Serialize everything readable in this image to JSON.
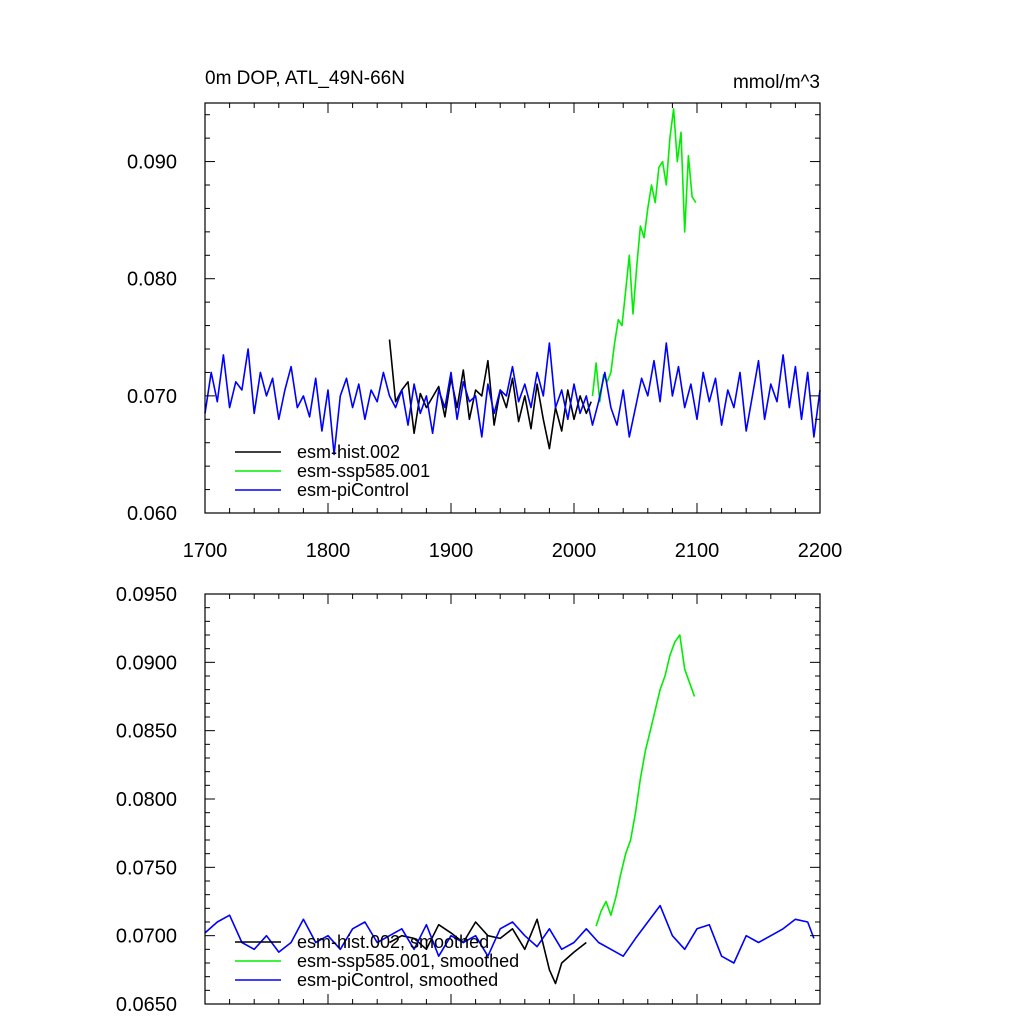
{
  "chart_data": [
    {
      "type": "line",
      "title": "0m DOP, ATL_49N-66N",
      "units": "mmol/m^3",
      "xlabel": "",
      "ylabel": "",
      "xlim": [
        1700,
        2200
      ],
      "ylim": [
        0.06,
        0.095
      ],
      "x_ticks": [
        1700,
        1800,
        1900,
        2000,
        2100,
        2200
      ],
      "x_tick_labels": [
        "1700",
        "1800",
        "1900",
        "2000",
        "2100",
        "2200"
      ],
      "y_ticks": [
        0.06,
        0.07,
        0.08,
        0.09
      ],
      "y_tick_labels": [
        "0.060",
        "0.070",
        "0.080",
        "0.090"
      ],
      "grid": false,
      "legend_position": "bottom-left",
      "series": [
        {
          "name": "esm-hist.002",
          "color": "#000000",
          "x": [
            1850,
            1855,
            1860,
            1865,
            1870,
            1875,
            1880,
            1885,
            1890,
            1895,
            1900,
            1905,
            1910,
            1915,
            1920,
            1925,
            1930,
            1935,
            1940,
            1945,
            1950,
            1955,
            1960,
            1965,
            1970,
            1975,
            1980,
            1985,
            1990,
            1995,
            2000,
            2005,
            2010,
            2014
          ],
          "y": [
            0.0748,
            0.0695,
            0.0705,
            0.0712,
            0.0668,
            0.0702,
            0.069,
            0.0699,
            0.0708,
            0.0682,
            0.0715,
            0.069,
            0.0722,
            0.068,
            0.0705,
            0.07,
            0.073,
            0.0675,
            0.0705,
            0.069,
            0.0715,
            0.0678,
            0.07,
            0.0672,
            0.071,
            0.068,
            0.0655,
            0.069,
            0.067,
            0.0705,
            0.068,
            0.07,
            0.0685,
            0.0695
          ]
        },
        {
          "name": "esm-ssp585.001",
          "color": "#00ee00",
          "x": [
            2015,
            2018,
            2021,
            2024,
            2027,
            2030,
            2033,
            2036,
            2039,
            2042,
            2045,
            2048,
            2051,
            2054,
            2057,
            2060,
            2063,
            2066,
            2069,
            2072,
            2075,
            2078,
            2081,
            2084,
            2087,
            2090,
            2093,
            2096,
            2099
          ],
          "y": [
            0.07,
            0.0728,
            0.0695,
            0.0718,
            0.0712,
            0.072,
            0.0745,
            0.0765,
            0.076,
            0.079,
            0.082,
            0.077,
            0.081,
            0.0845,
            0.0835,
            0.086,
            0.088,
            0.0865,
            0.0895,
            0.09,
            0.088,
            0.092,
            0.0945,
            0.09,
            0.0925,
            0.084,
            0.0905,
            0.087,
            0.0865
          ]
        },
        {
          "name": "esm-piControl",
          "color": "#0000ff",
          "x": [
            1700,
            1705,
            1710,
            1715,
            1720,
            1725,
            1730,
            1735,
            1740,
            1745,
            1750,
            1755,
            1760,
            1765,
            1770,
            1775,
            1780,
            1785,
            1790,
            1795,
            1800,
            1805,
            1810,
            1815,
            1820,
            1825,
            1830,
            1835,
            1840,
            1845,
            1850,
            1855,
            1860,
            1865,
            1870,
            1875,
            1880,
            1885,
            1890,
            1895,
            1900,
            1905,
            1910,
            1915,
            1920,
            1925,
            1930,
            1935,
            1940,
            1945,
            1950,
            1955,
            1960,
            1965,
            1970,
            1975,
            1980,
            1985,
            1990,
            1995,
            2000,
            2005,
            2010,
            2015,
            2020,
            2025,
            2030,
            2035,
            2040,
            2045,
            2050,
            2055,
            2060,
            2065,
            2070,
            2075,
            2080,
            2085,
            2090,
            2095,
            2100,
            2105,
            2110,
            2115,
            2120,
            2125,
            2130,
            2135,
            2140,
            2145,
            2150,
            2155,
            2160,
            2165,
            2170,
            2175,
            2180,
            2185,
            2190,
            2195,
            2200
          ],
          "y": [
            0.0685,
            0.072,
            0.0695,
            0.0735,
            0.069,
            0.0712,
            0.0705,
            0.074,
            0.0685,
            0.072,
            0.07,
            0.0715,
            0.068,
            0.0705,
            0.0725,
            0.069,
            0.07,
            0.0682,
            0.0715,
            0.067,
            0.0705,
            0.065,
            0.07,
            0.0715,
            0.069,
            0.071,
            0.068,
            0.0705,
            0.0695,
            0.072,
            0.07,
            0.069,
            0.0705,
            0.0675,
            0.071,
            0.0685,
            0.07,
            0.0668,
            0.0705,
            0.069,
            0.072,
            0.068,
            0.0712,
            0.0695,
            0.07,
            0.0665,
            0.071,
            0.0685,
            0.0705,
            0.07,
            0.0725,
            0.0695,
            0.071,
            0.069,
            0.072,
            0.07,
            0.0745,
            0.069,
            0.0705,
            0.068,
            0.071,
            0.0685,
            0.07,
            0.0675,
            0.0695,
            0.072,
            0.069,
            0.0675,
            0.0705,
            0.0665,
            0.069,
            0.0715,
            0.07,
            0.073,
            0.0695,
            0.0745,
            0.07,
            0.0725,
            0.069,
            0.071,
            0.068,
            0.072,
            0.0695,
            0.0715,
            0.0675,
            0.0705,
            0.069,
            0.072,
            0.067,
            0.07,
            0.073,
            0.068,
            0.071,
            0.0695,
            0.0735,
            0.069,
            0.0725,
            0.068,
            0.072,
            0.0665,
            0.0705
          ]
        }
      ]
    },
    {
      "type": "line",
      "title": "",
      "units": "",
      "xlabel": "",
      "ylabel": "",
      "xlim": [
        1700,
        2200
      ],
      "ylim": [
        0.065,
        0.095
      ],
      "x_ticks": [
        1700,
        1800,
        1900,
        2000,
        2100,
        2200
      ],
      "x_tick_labels": [],
      "y_ticks": [
        0.065,
        0.07,
        0.075,
        0.08,
        0.085,
        0.09,
        0.095
      ],
      "y_tick_labels": [
        "0.0650",
        "0.0700",
        "0.0750",
        "0.0800",
        "0.0850",
        "0.0900",
        "0.0950"
      ],
      "grid": false,
      "legend_position": "bottom-left",
      "series": [
        {
          "name": "esm-hist.002, smoothed",
          "color": "#000000",
          "x": [
            1850,
            1860,
            1870,
            1880,
            1890,
            1900,
            1910,
            1920,
            1930,
            1940,
            1950,
            1960,
            1970,
            1980,
            1985,
            1990,
            2000,
            2010
          ],
          "y": [
            0.0695,
            0.07,
            0.0698,
            0.069,
            0.0708,
            0.0702,
            0.0695,
            0.071,
            0.07,
            0.0698,
            0.0705,
            0.069,
            0.0712,
            0.0675,
            0.0665,
            0.068,
            0.0688,
            0.0695
          ]
        },
        {
          "name": "esm-ssp585.001, smoothed",
          "color": "#00ee00",
          "x": [
            2018,
            2022,
            2026,
            2030,
            2034,
            2038,
            2042,
            2046,
            2050,
            2054,
            2058,
            2062,
            2066,
            2070,
            2074,
            2078,
            2082,
            2086,
            2090,
            2094,
            2098
          ],
          "y": [
            0.0707,
            0.0718,
            0.0725,
            0.0715,
            0.0728,
            0.0745,
            0.076,
            0.077,
            0.079,
            0.0815,
            0.0835,
            0.085,
            0.0865,
            0.088,
            0.089,
            0.0905,
            0.0915,
            0.092,
            0.0895,
            0.0885,
            0.0875
          ]
        },
        {
          "name": "esm-piControl, smoothed",
          "color": "#0000ff",
          "x": [
            1700,
            1710,
            1720,
            1730,
            1740,
            1750,
            1760,
            1770,
            1780,
            1790,
            1800,
            1810,
            1820,
            1830,
            1840,
            1850,
            1860,
            1870,
            1880,
            1890,
            1900,
            1910,
            1920,
            1930,
            1940,
            1950,
            1960,
            1970,
            1980,
            1990,
            2000,
            2010,
            2020,
            2030,
            2040,
            2050,
            2060,
            2070,
            2080,
            2090,
            2100,
            2110,
            2120,
            2130,
            2140,
            2150,
            2160,
            2170,
            2180,
            2190,
            2195
          ],
          "y": [
            0.0702,
            0.071,
            0.0715,
            0.0695,
            0.069,
            0.07,
            0.0688,
            0.0695,
            0.0712,
            0.0695,
            0.07,
            0.069,
            0.0705,
            0.071,
            0.0695,
            0.07,
            0.0705,
            0.069,
            0.0708,
            0.0685,
            0.07,
            0.0695,
            0.07,
            0.0685,
            0.0705,
            0.071,
            0.07,
            0.0692,
            0.0705,
            0.069,
            0.0695,
            0.0705,
            0.0695,
            0.069,
            0.0685,
            0.0698,
            0.071,
            0.0722,
            0.07,
            0.069,
            0.0705,
            0.0708,
            0.0685,
            0.068,
            0.07,
            0.0695,
            0.07,
            0.0705,
            0.0712,
            0.071,
            0.0698
          ]
        }
      ]
    }
  ]
}
